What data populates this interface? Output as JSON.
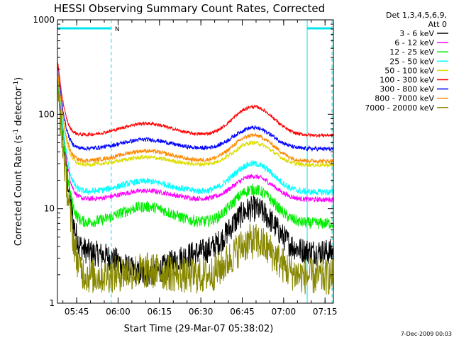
{
  "chart_data": {
    "type": "line",
    "title": "HESSI Observing Summary Count Rates, Corrected",
    "ylabel": "Corrected Count Rate (s-1 detector-1)",
    "ylabel_parts": [
      "Corrected Count Rate (s",
      "-1",
      " detector",
      "-1",
      ")"
    ],
    "xlabel": "Start Time (29-Mar-07 05:38:02)",
    "yscale": "log",
    "ylim": [
      1,
      1000
    ],
    "xlim_minutes": [
      0,
      100
    ],
    "x_ticks": [
      "05:45",
      "06:00",
      "06:15",
      "06:30",
      "06:45",
      "07:00",
      "07:15"
    ],
    "y_tick_labels": [
      "1",
      "10",
      "100",
      "1000"
    ],
    "legend_title": [
      "Det 1,3,4,5,6,9,",
      "Att 0"
    ],
    "legend_position": "right",
    "flag_label": "N",
    "footer": "7-Dec-2009 00:03",
    "grid": false,
    "series": [
      {
        "name": "3 - 6 keV",
        "color": "#000000",
        "start": 240,
        "base": 3.5,
        "bump1": 2.0,
        "bump2": 10.0,
        "noise": 0.32
      },
      {
        "name": "6 - 12 keV",
        "color": "#ff00ff",
        "start": 230,
        "base": 12.5,
        "bump1": 15.5,
        "bump2": 22.0,
        "noise": 0.06
      },
      {
        "name": "12 - 25 keV",
        "color": "#00ee00",
        "start": 220,
        "base": 7.0,
        "bump1": 10.5,
        "bump2": 16.0,
        "noise": 0.14
      },
      {
        "name": "25 - 50 keV",
        "color": "#00ffff",
        "start": 260,
        "base": 15.0,
        "bump1": 19.5,
        "bump2": 30.0,
        "noise": 0.08
      },
      {
        "name": "50 - 100 keV",
        "color": "#dddd00",
        "start": 280,
        "base": 29.0,
        "bump1": 35.0,
        "bump2": 50.0,
        "noise": 0.05
      },
      {
        "name": "100 - 300 keV",
        "color": "#ff0000",
        "start": 380,
        "base": 60.0,
        "bump1": 80.0,
        "bump2": 120.0,
        "noise": 0.04
      },
      {
        "name": "300 - 800 keV",
        "color": "#0000ff",
        "start": 330,
        "base": 43.0,
        "bump1": 54.0,
        "bump2": 72.0,
        "noise": 0.05
      },
      {
        "name": "800 - 7000 keV",
        "color": "#ff8800",
        "start": 300,
        "base": 32.0,
        "bump1": 41.0,
        "bump2": 60.0,
        "noise": 0.05
      },
      {
        "name": "7000 - 20000 keV",
        "color": "#888800",
        "start": 180,
        "base": 1.9,
        "bump1": 2.2,
        "bump2": 4.5,
        "noise": 0.45
      }
    ],
    "annotations": {
      "vertical_lines_minutes": [
        0,
        90.5
      ],
      "dashed_lines_minutes": [
        19.5,
        99.5
      ],
      "flag_bars_minutes": [
        [
          0,
          19.5
        ],
        [
          90.5,
          99.5
        ]
      ],
      "flag_color": "#00e5ee"
    }
  }
}
